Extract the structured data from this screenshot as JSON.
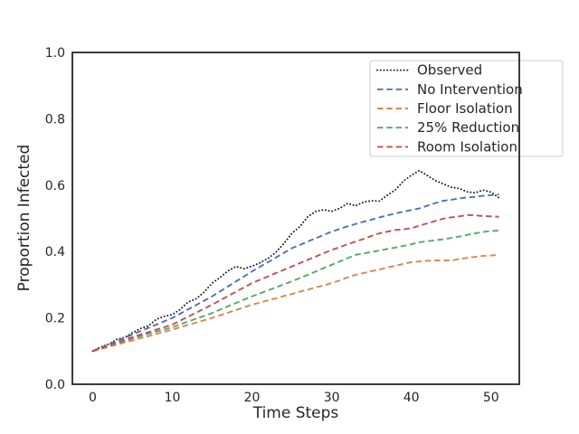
{
  "figure": {
    "background": "#ffffff",
    "axis_color": "#262626"
  },
  "chart_data": {
    "type": "line",
    "title": "",
    "xlabel": "Time Steps",
    "ylabel": "Proportion Infected",
    "xlim": [
      -2.55,
      53.55
    ],
    "ylim": [
      0.0,
      1.0
    ],
    "grid": false,
    "xticks": {
      "values": [
        0,
        10,
        20,
        30,
        40,
        50
      ],
      "labels": [
        "0",
        "10",
        "20",
        "30",
        "40",
        "50"
      ]
    },
    "yticks": {
      "values": [
        0.0,
        0.2,
        0.4,
        0.6,
        0.8,
        1.0
      ],
      "labels": [
        "0.0",
        "0.2",
        "0.4",
        "0.6",
        "0.8",
        "1.0"
      ]
    },
    "legend": {
      "position": "upper right",
      "background": "#ffffff",
      "border_color": "#cccccc"
    },
    "x": [
      0,
      1,
      2,
      3,
      4,
      5,
      6,
      7,
      8,
      9,
      10,
      11,
      12,
      13,
      14,
      15,
      16,
      17,
      18,
      19,
      20,
      21,
      22,
      23,
      24,
      25,
      26,
      27,
      28,
      29,
      30,
      31,
      32,
      33,
      34,
      35,
      36,
      37,
      38,
      39,
      40,
      41,
      42,
      43,
      44,
      45,
      46,
      47,
      48,
      49,
      50,
      51
    ],
    "series": [
      {
        "name": "Observed",
        "color": "#1a1a1a",
        "linestyle": "dotted",
        "values": [
          0.1,
          0.112,
          0.121,
          0.135,
          0.141,
          0.155,
          0.168,
          0.176,
          0.196,
          0.205,
          0.21,
          0.226,
          0.248,
          0.258,
          0.278,
          0.305,
          0.322,
          0.342,
          0.355,
          0.348,
          0.356,
          0.366,
          0.379,
          0.398,
          0.424,
          0.455,
          0.475,
          0.505,
          0.521,
          0.526,
          0.521,
          0.53,
          0.545,
          0.538,
          0.549,
          0.553,
          0.552,
          0.57,
          0.586,
          0.612,
          0.63,
          0.644,
          0.629,
          0.614,
          0.604,
          0.594,
          0.59,
          0.58,
          0.577,
          0.585,
          0.579,
          0.562
        ]
      },
      {
        "name": "No Intervention",
        "color": "#4C72B0",
        "linestyle": "dashed",
        "values": [
          0.1,
          0.11,
          0.12,
          0.13,
          0.14,
          0.15,
          0.16,
          0.17,
          0.18,
          0.19,
          0.2,
          0.213,
          0.226,
          0.239,
          0.252,
          0.265,
          0.28,
          0.295,
          0.31,
          0.325,
          0.34,
          0.354,
          0.368,
          0.382,
          0.396,
          0.41,
          0.42,
          0.43,
          0.44,
          0.45,
          0.46,
          0.468,
          0.476,
          0.483,
          0.49,
          0.496,
          0.503,
          0.509,
          0.515,
          0.52,
          0.525,
          0.53,
          0.538,
          0.546,
          0.553,
          0.556,
          0.56,
          0.563,
          0.565,
          0.568,
          0.57,
          0.572
        ]
      },
      {
        "name": "Floor Isolation",
        "color": "#DD8452",
        "linestyle": "dashed",
        "values": [
          0.1,
          0.106,
          0.113,
          0.119,
          0.126,
          0.132,
          0.139,
          0.145,
          0.152,
          0.158,
          0.165,
          0.172,
          0.179,
          0.186,
          0.193,
          0.2,
          0.208,
          0.216,
          0.224,
          0.232,
          0.24,
          0.246,
          0.253,
          0.259,
          0.266,
          0.272,
          0.279,
          0.285,
          0.292,
          0.298,
          0.305,
          0.313,
          0.322,
          0.33,
          0.335,
          0.341,
          0.346,
          0.352,
          0.357,
          0.363,
          0.368,
          0.37,
          0.372,
          0.373,
          0.373,
          0.373,
          0.377,
          0.381,
          0.384,
          0.387,
          0.388,
          0.39
        ]
      },
      {
        "name": "25% Reduction",
        "color": "#55A868",
        "linestyle": "dashed",
        "values": [
          0.1,
          0.108,
          0.115,
          0.123,
          0.13,
          0.138,
          0.145,
          0.152,
          0.159,
          0.165,
          0.172,
          0.181,
          0.189,
          0.198,
          0.206,
          0.215,
          0.225,
          0.235,
          0.245,
          0.255,
          0.265,
          0.274,
          0.283,
          0.292,
          0.301,
          0.31,
          0.32,
          0.33,
          0.34,
          0.35,
          0.36,
          0.37,
          0.38,
          0.39,
          0.394,
          0.399,
          0.403,
          0.408,
          0.412,
          0.417,
          0.422,
          0.428,
          0.431,
          0.434,
          0.437,
          0.441,
          0.445,
          0.45,
          0.455,
          0.459,
          0.462,
          0.463
        ]
      },
      {
        "name": "Room Isolation",
        "color": "#C44E52",
        "linestyle": "dashed",
        "values": [
          0.1,
          0.108,
          0.117,
          0.125,
          0.134,
          0.142,
          0.15,
          0.157,
          0.165,
          0.172,
          0.18,
          0.192,
          0.204,
          0.216,
          0.228,
          0.24,
          0.253,
          0.266,
          0.279,
          0.292,
          0.305,
          0.315,
          0.325,
          0.335,
          0.345,
          0.355,
          0.365,
          0.375,
          0.385,
          0.395,
          0.405,
          0.413,
          0.422,
          0.43,
          0.438,
          0.447,
          0.455,
          0.46,
          0.465,
          0.467,
          0.47,
          0.478,
          0.485,
          0.492,
          0.499,
          0.503,
          0.506,
          0.51,
          0.509,
          0.507,
          0.506,
          0.505
        ]
      }
    ]
  }
}
